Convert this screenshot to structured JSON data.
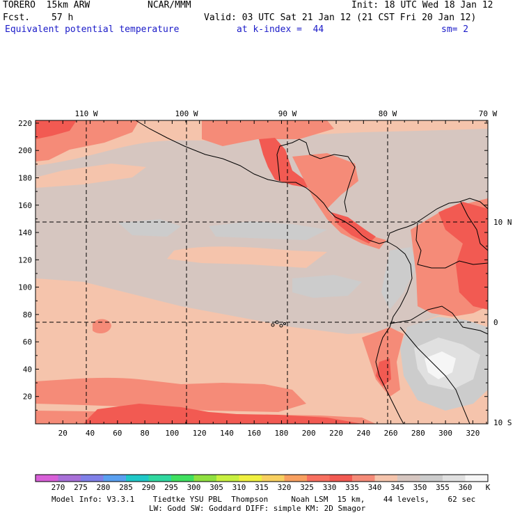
{
  "header": {
    "model": "TORERO  15km ARW",
    "org": "NCAR/MMM",
    "init": "Init: 18 UTC Wed 18 Jan 12",
    "fcst_label": "Fcst.",
    "fcst_value": "57 h",
    "valid": "Valid: 03 UTC Sat 21 Jan 12 (21 CST Fri 20 Jan 12)",
    "field": "Equivalent potential temperature",
    "level": "at k-index =  44",
    "smooth": "sm= 2"
  },
  "map": {
    "lon_labels": [
      "110 W",
      "100 W",
      "90 W",
      "80 W",
      "70 W"
    ],
    "lat_labels": [
      "10 N",
      "0",
      "10 S"
    ],
    "y_ticks": [
      "20",
      "40",
      "60",
      "80",
      "100",
      "120",
      "140",
      "160",
      "180",
      "200",
      "220"
    ],
    "x_ticks": [
      "20",
      "40",
      "60",
      "80",
      "100",
      "120",
      "140",
      "160",
      "180",
      "200",
      "220",
      "240",
      "260",
      "280",
      "300",
      "320"
    ],
    "colors": {
      "c330": "#f25a52",
      "c335": "#f58b78",
      "c340": "#f5c4ac",
      "c345": "#d6c6c0",
      "c350": "#cccccc",
      "c355": "#e0e0e0",
      "c360": "#f6f6f6"
    }
  },
  "colorbar": {
    "labels": [
      "270",
      "275",
      "280",
      "285",
      "290",
      "295",
      "300",
      "305",
      "310",
      "315",
      "320",
      "325",
      "330",
      "335",
      "340",
      "345",
      "350",
      "355",
      "360"
    ],
    "unit": "K",
    "colors": [
      "#d860d8",
      "#a870d8",
      "#8080e8",
      "#5aa0f0",
      "#20c8c8",
      "#30d8a0",
      "#40e060",
      "#90e040",
      "#c8f040",
      "#f0f040",
      "#f8d060",
      "#f8a060",
      "#f87060",
      "#f25a52",
      "#f58b78",
      "#f5c4ac",
      "#d6c6c0",
      "#cccccc",
      "#e0e0e0",
      "#f6f6f6"
    ]
  },
  "footer": {
    "line1": "Model Info: V3.3.1    Tiedtke YSU PBL  Thompson     Noah LSM  15 km,    44 levels,    62 sec",
    "line2": "LW: Godd SW: Goddard DIFF: simple KM: 2D Smagor"
  }
}
